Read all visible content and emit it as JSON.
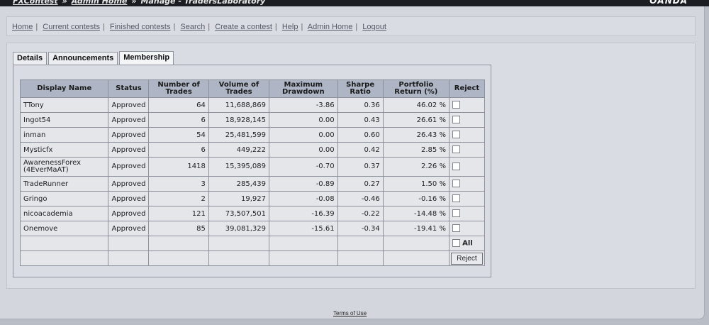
{
  "header": {
    "crumb_1": "FXContest",
    "sep": "»",
    "crumb_2": "Admin Home",
    "crumb_3": "Manage - TradersLaboratory",
    "logo": "OANDA"
  },
  "nav": {
    "items": [
      "Home",
      "Current contests",
      "Finished contests",
      "Search",
      "Create a contest",
      "Help",
      "Admin Home",
      "Logout"
    ],
    "sep": "|"
  },
  "tabs": [
    "Details",
    "Announcements",
    "Membership"
  ],
  "table": {
    "headers": [
      "Display Name",
      "Status",
      "Number of Trades",
      "Volume of Trades",
      "Maximum Drawdown",
      "Sharpe Ratio",
      "Portfolio Return (%)",
      "Reject"
    ],
    "rows": [
      {
        "name": "TTony",
        "status": "Approved",
        "trades": "64",
        "volume": "11,688,869",
        "drawdown": "-3.86",
        "sharpe": "0.36",
        "ret": "46.02 %"
      },
      {
        "name": "Ingot54",
        "status": "Approved",
        "trades": "6",
        "volume": "18,928,145",
        "drawdown": "0.00",
        "sharpe": "0.43",
        "ret": "26.61 %"
      },
      {
        "name": "inman",
        "status": "Approved",
        "trades": "54",
        "volume": "25,481,599",
        "drawdown": "0.00",
        "sharpe": "0.60",
        "ret": "26.43 %"
      },
      {
        "name": "Mysticfx",
        "status": "Approved",
        "trades": "6",
        "volume": "449,222",
        "drawdown": "0.00",
        "sharpe": "0.42",
        "ret": "2.85 %"
      },
      {
        "name": "AwarenessForex",
        "name2": "(4EverMaAT)",
        "status": "Approved",
        "trades": "1418",
        "volume": "15,395,089",
        "drawdown": "-0.70",
        "sharpe": "0.37",
        "ret": "2.26 %"
      },
      {
        "name": "TradeRunner",
        "status": "Approved",
        "trades": "3",
        "volume": "285,439",
        "drawdown": "-0.89",
        "sharpe": "0.27",
        "ret": "1.50 %"
      },
      {
        "name": "Gringo",
        "status": "Approved",
        "trades": "2",
        "volume": "19,927",
        "drawdown": "-0.08",
        "sharpe": "-0.46",
        "ret": "-0.16 %"
      },
      {
        "name": "nicoacademia",
        "status": "Approved",
        "trades": "121",
        "volume": "73,507,501",
        "drawdown": "-16.39",
        "sharpe": "-0.22",
        "ret": "-14.48 %"
      },
      {
        "name": "Onemove",
        "status": "Approved",
        "trades": "85",
        "volume": "39,081,329",
        "drawdown": "-15.61",
        "sharpe": "-0.34",
        "ret": "-19.41 %"
      }
    ],
    "all_label": "All",
    "reject_button": "Reject"
  },
  "footer": {
    "terms": "Terms of Use"
  }
}
